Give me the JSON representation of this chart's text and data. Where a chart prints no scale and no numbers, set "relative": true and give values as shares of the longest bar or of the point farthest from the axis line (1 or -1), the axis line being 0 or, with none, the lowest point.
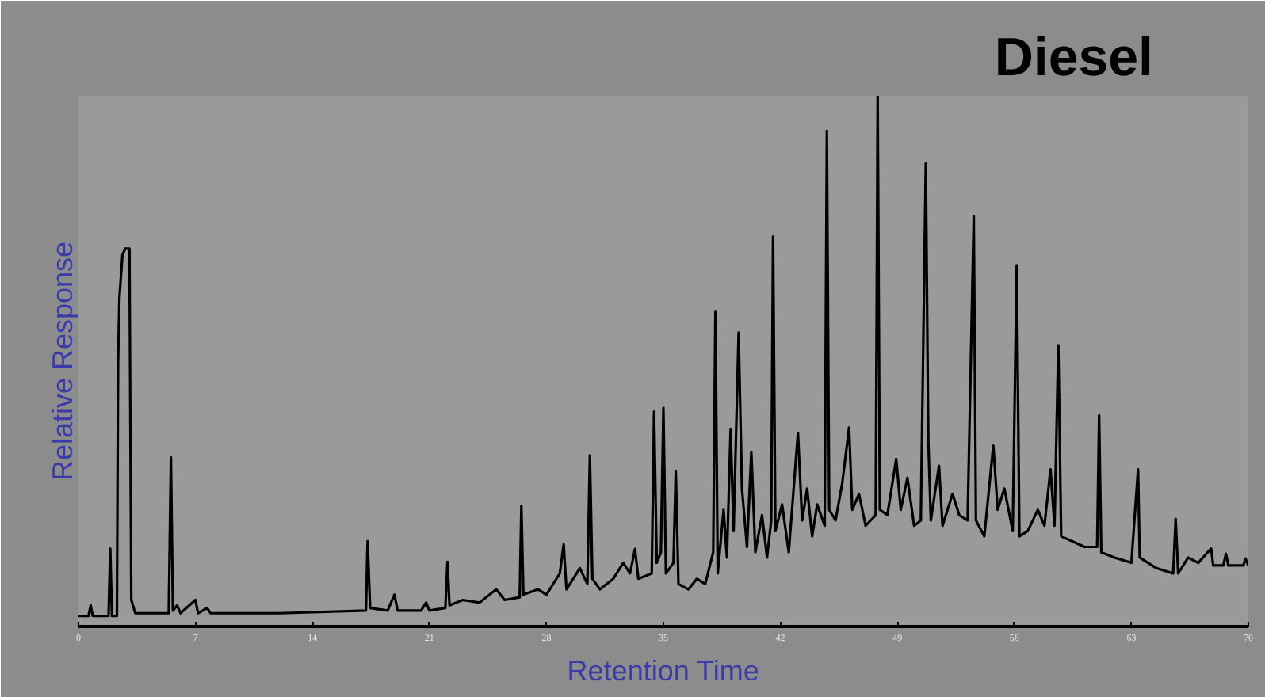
{
  "chart_data": {
    "type": "line",
    "title": "Diesel",
    "xlabel": "Retention Time",
    "ylabel": "Relative Response",
    "relative": true,
    "xlim": [
      0,
      70
    ],
    "xticks": [
      0,
      7,
      14,
      21,
      28,
      35,
      42,
      49,
      56,
      63,
      70
    ],
    "grid": false,
    "series": [
      {
        "color": "#000000",
        "x": [
          0.0,
          0.6,
          0.73,
          0.85,
          1.8,
          1.9,
          2.0,
          2.3,
          2.37,
          2.45,
          2.63,
          2.8,
          3.05,
          3.16,
          3.4,
          5.4,
          5.53,
          5.65,
          5.9,
          6.1,
          7.0,
          7.15,
          7.7,
          7.9,
          12.0,
          17.2,
          17.3,
          17.45,
          18.5,
          18.9,
          19.1,
          20.5,
          20.8,
          21.0,
          21.95,
          22.08,
          22.2,
          23.0,
          24.0,
          25.0,
          25.5,
          26.4,
          26.5,
          26.62,
          27.5,
          28.0,
          28.8,
          29.03,
          29.2,
          30.0,
          30.45,
          30.6,
          30.75,
          31.2,
          32.0,
          32.6,
          33.0,
          33.3,
          33.5,
          34.3,
          34.44,
          34.6,
          34.85,
          35.0,
          35.15,
          35.6,
          35.74,
          35.9,
          36.5,
          37.0,
          37.5,
          37.98,
          38.11,
          38.25,
          38.6,
          38.8,
          39.02,
          39.2,
          39.5,
          39.7,
          40.0,
          40.26,
          40.5,
          40.9,
          41.2,
          41.45,
          41.56,
          41.7,
          42.1,
          42.5,
          43.05,
          43.3,
          43.6,
          43.9,
          44.2,
          44.65,
          44.78,
          44.92,
          45.3,
          45.7,
          46.11,
          46.3,
          46.7,
          47.1,
          47.4,
          47.7,
          47.82,
          47.95,
          48.4,
          48.93,
          49.2,
          49.6,
          50.0,
          50.4,
          50.7,
          50.85,
          51.0,
          51.49,
          51.7,
          52.3,
          52.7,
          53.2,
          53.57,
          53.7,
          54.2,
          54.74,
          55.0,
          55.4,
          55.9,
          56.14,
          56.3,
          56.8,
          57.4,
          57.8,
          58.16,
          58.4,
          58.63,
          58.8,
          59.5,
          60.2,
          60.95,
          61.07,
          61.2,
          62.0,
          63.0,
          63.4,
          63.5,
          64.5,
          65.5,
          65.65,
          65.8,
          66.4,
          67.0,
          67.77,
          67.9,
          68.5,
          68.66,
          68.8,
          69.7,
          69.83,
          70.0
        ],
        "values": [
          0.02,
          0.02,
          0.04,
          0.02,
          0.02,
          0.147,
          0.02,
          0.02,
          0.5,
          0.62,
          0.7,
          0.712,
          0.712,
          0.05,
          0.025,
          0.025,
          0.319,
          0.03,
          0.04,
          0.025,
          0.05,
          0.025,
          0.035,
          0.025,
          0.025,
          0.03,
          0.161,
          0.035,
          0.03,
          0.06,
          0.03,
          0.03,
          0.045,
          0.03,
          0.035,
          0.122,
          0.04,
          0.05,
          0.045,
          0.07,
          0.05,
          0.055,
          0.228,
          0.06,
          0.07,
          0.06,
          0.1,
          0.155,
          0.07,
          0.11,
          0.08,
          0.323,
          0.09,
          0.07,
          0.09,
          0.12,
          0.1,
          0.146,
          0.09,
          0.1,
          0.405,
          0.12,
          0.14,
          0.412,
          0.1,
          0.12,
          0.293,
          0.08,
          0.07,
          0.09,
          0.08,
          0.14,
          0.593,
          0.1,
          0.22,
          0.13,
          0.371,
          0.18,
          0.554,
          0.26,
          0.15,
          0.329,
          0.14,
          0.21,
          0.13,
          0.2,
          0.735,
          0.18,
          0.23,
          0.14,
          0.365,
          0.2,
          0.26,
          0.17,
          0.23,
          0.19,
          0.934,
          0.22,
          0.2,
          0.27,
          0.375,
          0.22,
          0.25,
          0.19,
          0.2,
          0.21,
          1.0,
          0.22,
          0.21,
          0.316,
          0.22,
          0.28,
          0.19,
          0.2,
          0.873,
          0.35,
          0.2,
          0.303,
          0.19,
          0.25,
          0.21,
          0.2,
          0.773,
          0.2,
          0.17,
          0.341,
          0.22,
          0.26,
          0.18,
          0.681,
          0.17,
          0.18,
          0.22,
          0.19,
          0.296,
          0.19,
          0.53,
          0.17,
          0.16,
          0.15,
          0.15,
          0.398,
          0.14,
          0.13,
          0.12,
          0.296,
          0.13,
          0.11,
          0.1,
          0.203,
          0.1,
          0.13,
          0.12,
          0.147,
          0.115,
          0.115,
          0.137,
          0.115,
          0.115,
          0.128,
          0.115
        ]
      }
    ]
  }
}
